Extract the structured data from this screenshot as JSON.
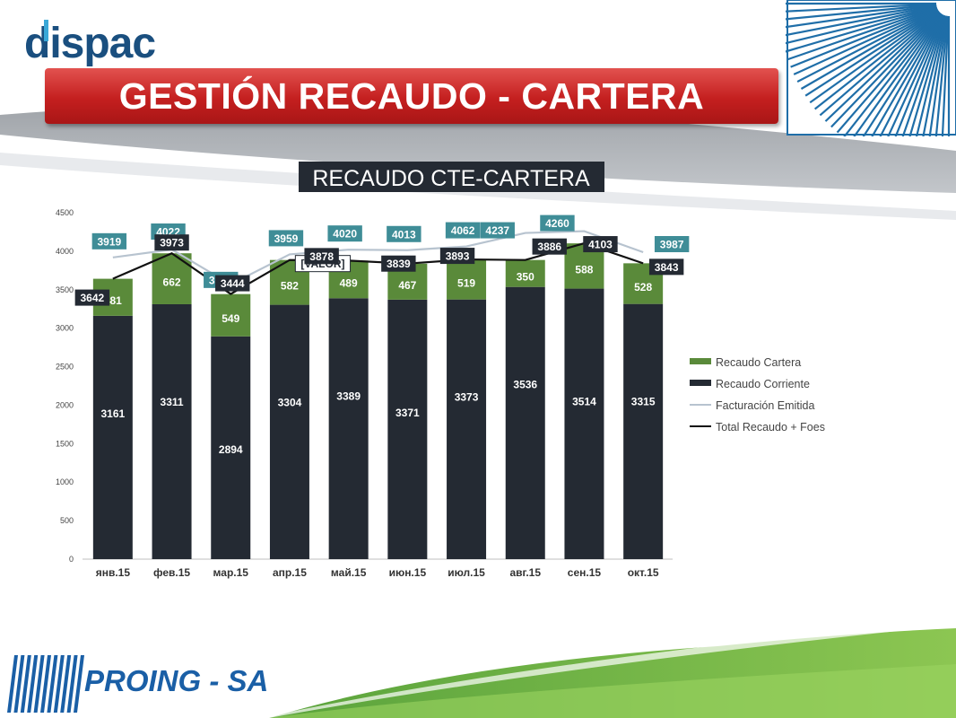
{
  "header": {
    "logo_text": "dispac",
    "slide_title": "GESTIÓN RECAUDO - CARTERA"
  },
  "footer": {
    "company_logo_text": "PROING - SA"
  },
  "colors": {
    "recaudo_cartera": "#5a8a3a",
    "recaudo_corriente": "#242a33",
    "facturacion": "#b7c3cf",
    "total_line": "#111111",
    "label_teal": "#3f8d97",
    "label_dark": "#242a33",
    "title_red": "#c41f1f",
    "accent_blue": "#1a5fa6"
  },
  "chart_data": {
    "type": "bar",
    "title": "RECAUDO CTE-CARTERA",
    "categories": [
      "янв.15",
      "фев.15",
      "мар.15",
      "апр.15",
      "май.15",
      "июн.15",
      "июл.15",
      "авг.15",
      "сен.15",
      "окт.15"
    ],
    "series": [
      {
        "name": "Recaudo Corriente",
        "kind": "stacked-bar",
        "values": [
          3161,
          3311,
          2894,
          3304,
          3389,
          3371,
          3373,
          3536,
          3514,
          3315
        ]
      },
      {
        "name": "Recaudo Cartera",
        "kind": "stacked-bar",
        "values": [
          481,
          662,
          549,
          582,
          489,
          467,
          519,
          350,
          588,
          528
        ]
      },
      {
        "name": "Facturación Emitida",
        "kind": "line",
        "values": [
          3919,
          4022,
          3569,
          3959,
          4020,
          4013,
          4062,
          4237,
          4260,
          3987
        ]
      },
      {
        "name": "Total Recaudo + Foes",
        "kind": "line",
        "values": [
          3642,
          3973,
          3444,
          null,
          3878,
          3839,
          3893,
          3886,
          4103,
          3843
        ],
        "labels": [
          "3642",
          "3973",
          "3444",
          "[VALOR]",
          "3878",
          "3839",
          "3893",
          "3886",
          "4103",
          "3843"
        ]
      }
    ],
    "legend_order": [
      "Recaudo Cartera",
      "Recaudo Corriente",
      "Facturación Emitida",
      "Total Recaudo + Foes"
    ],
    "legend_position": "right",
    "yticks": [
      "0",
      "500",
      "1000",
      "1500",
      "2000",
      "2500",
      "3000",
      "3500",
      "4000",
      "4500"
    ],
    "ylim": [
      0,
      4500
    ],
    "grid": false
  }
}
